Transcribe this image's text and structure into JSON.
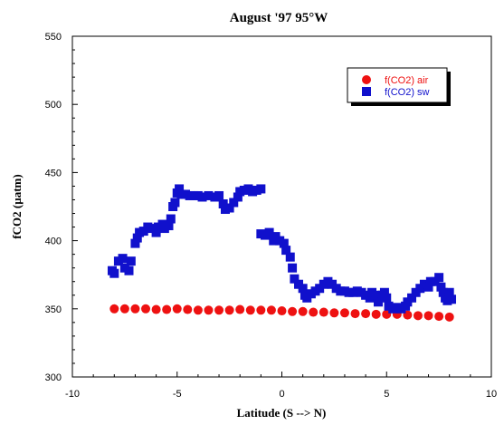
{
  "chart_data": {
    "type": "scatter",
    "title": "August '97 95°W",
    "xlabel": "Latitude (S --> N)",
    "ylabel": "fCO2 (µatm)",
    "xlim": [
      -10,
      10
    ],
    "ylim": [
      300,
      550
    ],
    "xticks": [
      "-10",
      "-5",
      "0",
      "5",
      "10"
    ],
    "yticks": [
      "300",
      "350",
      "400",
      "450",
      "500",
      "550"
    ],
    "grid": false,
    "legend_position": "top-right",
    "series": [
      {
        "name": "f(CO2) air",
        "color": "#ee1111",
        "marker": "circle",
        "points": [
          [
            -8.0,
            350
          ],
          [
            -7.5,
            350
          ],
          [
            -7.0,
            350
          ],
          [
            -6.5,
            350
          ],
          [
            -6.0,
            349.5
          ],
          [
            -5.5,
            349.5
          ],
          [
            -5.0,
            350
          ],
          [
            -4.5,
            349.5
          ],
          [
            -4.0,
            349
          ],
          [
            -3.5,
            349
          ],
          [
            -3.0,
            349
          ],
          [
            -2.5,
            349
          ],
          [
            -2.0,
            349.5
          ],
          [
            -1.5,
            349
          ],
          [
            -1.0,
            349
          ],
          [
            -0.5,
            349
          ],
          [
            0.0,
            348.5
          ],
          [
            0.5,
            348
          ],
          [
            1.0,
            348
          ],
          [
            1.5,
            347.5
          ],
          [
            2.0,
            347.5
          ],
          [
            2.5,
            347
          ],
          [
            3.0,
            347
          ],
          [
            3.5,
            346.5
          ],
          [
            4.0,
            346.5
          ],
          [
            4.5,
            346
          ],
          [
            5.0,
            346
          ],
          [
            5.5,
            346
          ],
          [
            6.0,
            345.5
          ],
          [
            6.5,
            345
          ],
          [
            7.0,
            345
          ],
          [
            7.5,
            344.5
          ],
          [
            8.0,
            344
          ]
        ]
      },
      {
        "name": "f(CO2) sw",
        "color": "#1010cc",
        "marker": "square",
        "points": [
          [
            -8.1,
            378
          ],
          [
            -8.0,
            376
          ],
          [
            -7.8,
            385
          ],
          [
            -7.6,
            387
          ],
          [
            -7.5,
            380
          ],
          [
            -7.3,
            378
          ],
          [
            -7.2,
            385
          ],
          [
            -7.0,
            398
          ],
          [
            -6.9,
            402
          ],
          [
            -6.8,
            406
          ],
          [
            -6.6,
            407
          ],
          [
            -6.4,
            410
          ],
          [
            -6.2,
            409
          ],
          [
            -6.0,
            406
          ],
          [
            -5.9,
            410
          ],
          [
            -5.7,
            412
          ],
          [
            -5.6,
            409
          ],
          [
            -5.4,
            411
          ],
          [
            -5.3,
            416
          ],
          [
            -5.2,
            425
          ],
          [
            -5.1,
            428
          ],
          [
            -5.0,
            435
          ],
          [
            -4.9,
            438
          ],
          [
            -4.8,
            434
          ],
          [
            -4.6,
            434
          ],
          [
            -4.4,
            433
          ],
          [
            -4.2,
            433
          ],
          [
            -4.0,
            433
          ],
          [
            -3.8,
            432
          ],
          [
            -3.5,
            433
          ],
          [
            -3.2,
            432
          ],
          [
            -3.0,
            433
          ],
          [
            -2.8,
            427
          ],
          [
            -2.7,
            423
          ],
          [
            -2.5,
            424
          ],
          [
            -2.3,
            428
          ],
          [
            -2.1,
            432
          ],
          [
            -2.0,
            436
          ],
          [
            -1.8,
            437
          ],
          [
            -1.6,
            438
          ],
          [
            -1.4,
            436
          ],
          [
            -1.2,
            437
          ],
          [
            -1.0,
            438
          ],
          [
            -1.0,
            405
          ],
          [
            -0.8,
            404
          ],
          [
            -0.6,
            406
          ],
          [
            -0.4,
            400
          ],
          [
            -0.3,
            403
          ],
          [
            -0.1,
            400
          ],
          [
            0.1,
            398
          ],
          [
            0.2,
            393
          ],
          [
            0.4,
            388
          ],
          [
            0.5,
            380
          ],
          [
            0.6,
            372
          ],
          [
            0.8,
            368
          ],
          [
            1.0,
            365
          ],
          [
            1.1,
            360
          ],
          [
            1.2,
            358
          ],
          [
            1.4,
            361
          ],
          [
            1.6,
            363
          ],
          [
            1.8,
            365
          ],
          [
            2.0,
            368
          ],
          [
            2.2,
            370
          ],
          [
            2.4,
            368
          ],
          [
            2.6,
            365
          ],
          [
            2.8,
            363
          ],
          [
            3.0,
            363
          ],
          [
            3.2,
            362
          ],
          [
            3.4,
            362
          ],
          [
            3.6,
            363
          ],
          [
            3.8,
            362
          ],
          [
            4.0,
            360
          ],
          [
            4.2,
            358
          ],
          [
            4.3,
            362
          ],
          [
            4.5,
            360
          ],
          [
            4.6,
            355
          ],
          [
            4.8,
            360
          ],
          [
            4.9,
            362
          ],
          [
            5.0,
            358
          ],
          [
            5.1,
            352
          ],
          [
            5.3,
            350
          ],
          [
            5.5,
            351
          ],
          [
            5.7,
            350
          ],
          [
            5.9,
            352
          ],
          [
            6.0,
            355
          ],
          [
            6.2,
            358
          ],
          [
            6.4,
            362
          ],
          [
            6.6,
            365
          ],
          [
            6.8,
            368
          ],
          [
            7.0,
            366
          ],
          [
            7.1,
            370
          ],
          [
            7.3,
            370
          ],
          [
            7.5,
            373
          ],
          [
            7.6,
            366
          ],
          [
            7.7,
            362
          ],
          [
            7.8,
            358
          ],
          [
            7.9,
            356
          ],
          [
            8.0,
            362
          ],
          [
            8.1,
            357
          ]
        ]
      }
    ]
  }
}
